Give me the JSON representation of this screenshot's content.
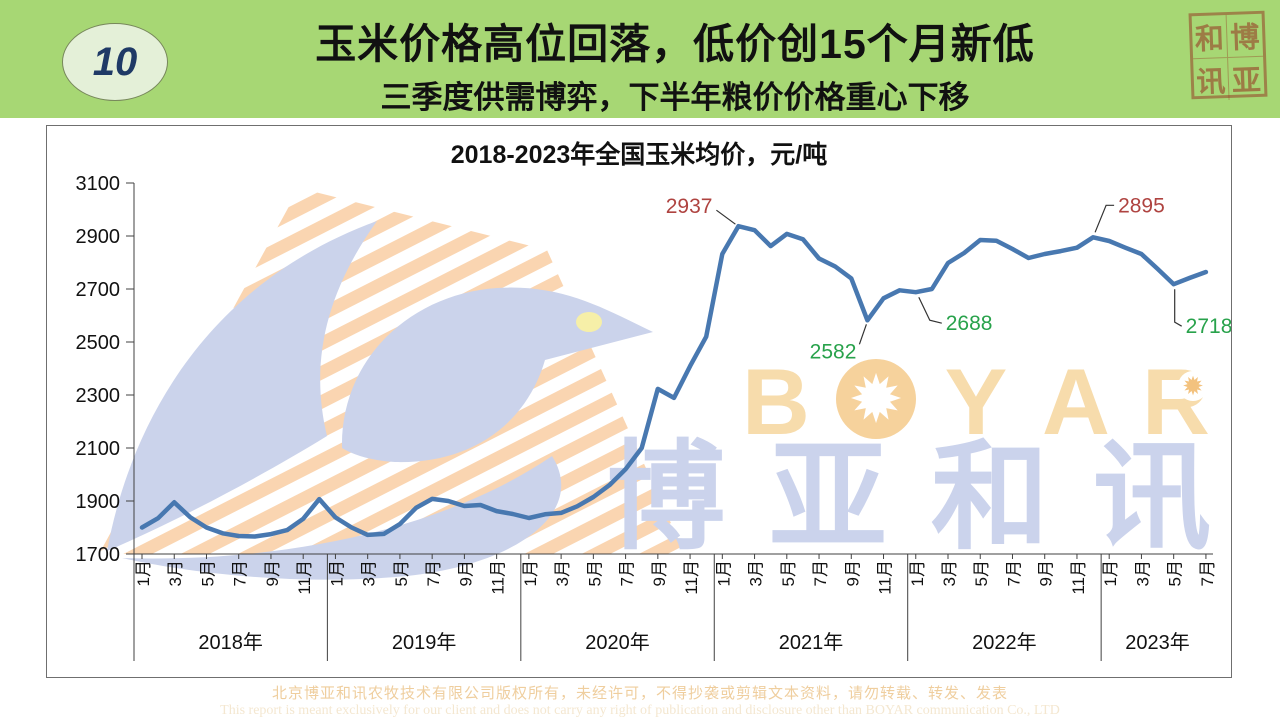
{
  "slide": {
    "page_number": "10",
    "title": "玉米价格高位回落，低价创15个月新低",
    "subtitle": "三季度供需博弈，下半年粮价价格重心下移",
    "seal_chars": [
      "和",
      "博",
      "讯",
      "亚"
    ],
    "footer_line1": "北京博亚和讯农牧技术有限公司版权所有，未经许可，不得抄袭或剪辑文本资料，请勿转载、转发、发表",
    "footer_line2": "This report is meant exclusively for our client and does not carry any right of publication and disclosure other than BOYAR communication Co., LTD"
  },
  "watermark": {
    "brand_en": "BOYAR",
    "brand_cn": "博亚和讯",
    "orange": "#F7DCAC",
    "blue": "#CBD3EB"
  },
  "chart_data": {
    "type": "line",
    "title": "2018-2023年全国玉米均价，元/吨",
    "ylim": [
      1700,
      3100
    ],
    "yticks": [
      3100,
      2900,
      2700,
      2500,
      2300,
      2100,
      1900,
      1700
    ],
    "month_tick_labels": [
      "1月",
      "3月",
      "5月",
      "7月",
      "9月",
      "11月"
    ],
    "year_labels": [
      "2018年",
      "2019年",
      "2020年",
      "2021年",
      "2022年",
      "2023年"
    ],
    "months_in_last_year": 7,
    "grid": "off",
    "series": [
      {
        "name": "全国玉米均价",
        "color": "#4878B0",
        "values": [
          1800,
          1835,
          1895,
          1838,
          1800,
          1778,
          1768,
          1766,
          1775,
          1790,
          1833,
          1907,
          1838,
          1800,
          1772,
          1776,
          1813,
          1874,
          1908,
          1900,
          1881,
          1885,
          1862,
          1851,
          1836,
          1850,
          1855,
          1880,
          1915,
          1960,
          2020,
          2100,
          2323,
          2289,
          2409,
          2520,
          2832,
          2937,
          2922,
          2862,
          2908,
          2888,
          2815,
          2785,
          2740,
          2582,
          2665,
          2695,
          2688,
          2700,
          2798,
          2836,
          2885,
          2882,
          2851,
          2817,
          2832,
          2843,
          2856,
          2895,
          2881,
          2856,
          2832,
          2776,
          2718,
          2742,
          2764
        ]
      }
    ],
    "annotations": [
      {
        "label": "2937",
        "month_index": 37,
        "value": 2937,
        "color": "#AF4340"
      },
      {
        "label": "2582",
        "month_index": 45,
        "value": 2582,
        "color": "#28A24B"
      },
      {
        "label": "2688",
        "month_index": 48,
        "value": 2688,
        "color": "#28A24B"
      },
      {
        "label": "2895",
        "month_index": 59,
        "value": 2895,
        "color": "#AF4340"
      },
      {
        "label": "2718",
        "month_index": 64,
        "value": 2718,
        "color": "#28A24B"
      }
    ]
  }
}
